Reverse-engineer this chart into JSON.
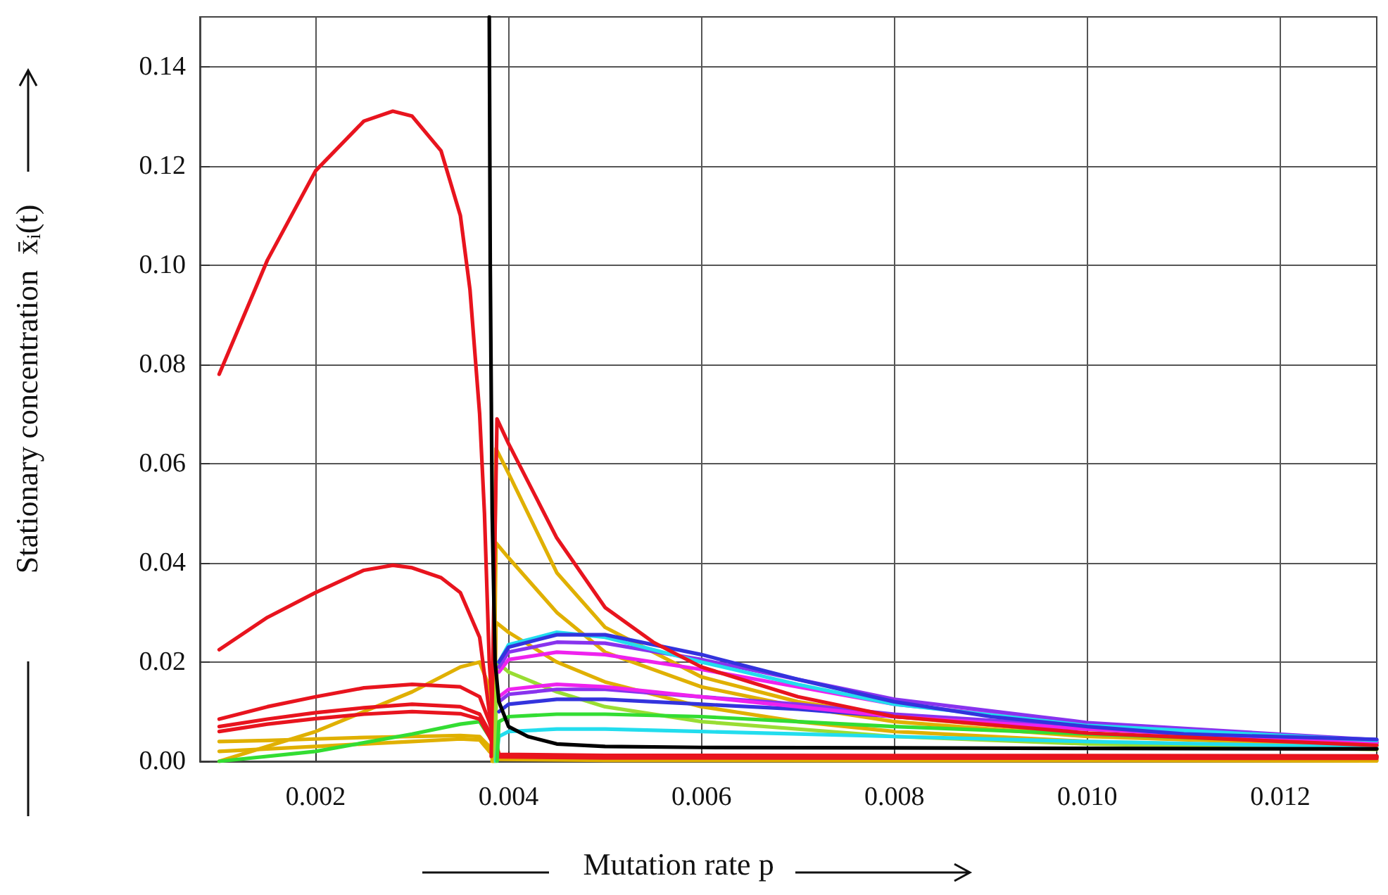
{
  "chart_data": {
    "type": "line",
    "xlabel": "Mutation rate p",
    "ylabel": "Stationary concentration  x̄$_{i}$(t)",
    "xlim": [
      0.0008,
      0.013
    ],
    "xticks": [
      0.002,
      0.004,
      0.006,
      0.008,
      {
        "value": 0.01,
        "label": "0.010"
      },
      0.012
    ],
    "ylim": [
      0,
      0.15
    ],
    "yticks": [
      {
        "value": 0,
        "label": "0.00"
      },
      {
        "value": 0.02,
        "label": "0.02"
      },
      {
        "value": 0.04,
        "label": "0.04"
      },
      {
        "value": 0.06,
        "label": "0.06"
      },
      {
        "value": 0.08,
        "label": "0.08"
      },
      {
        "value": 0.1,
        "label": "0.10"
      },
      {
        "value": 0.12,
        "label": "0.12"
      },
      {
        "value": 0.14,
        "label": "0.14"
      }
    ],
    "grid": true,
    "marker": "none",
    "line_style": "solid",
    "series": [
      {
        "color": "#e0b000",
        "x": [
          0.001,
          0.0015,
          0.002,
          0.0025,
          0.003,
          0.0035,
          0.0037,
          0.0038,
          0.0039,
          0.005,
          0.013
        ],
        "values": [
          0.004,
          0.0042,
          0.0045,
          0.0048,
          0.005,
          0.0052,
          0.005,
          0.003,
          0.0006,
          0.0004,
          0.0003
        ]
      },
      {
        "color": "#e0b000",
        "x": [
          0.001,
          0.0015,
          0.002,
          0.0025,
          0.003,
          0.0035,
          0.0037,
          0.0038,
          0.0039,
          0.005,
          0.013
        ],
        "values": [
          0.002,
          0.0025,
          0.003,
          0.0035,
          0.004,
          0.0045,
          0.0043,
          0.002,
          0.0004,
          0.0002,
          0.0001
        ]
      },
      {
        "color": "#e0b000",
        "x": [
          0.001,
          0.0015,
          0.002,
          0.0025,
          0.003,
          0.0035,
          0.0037,
          0.0038,
          0.0039
        ],
        "values": [
          0.0,
          0.003,
          0.006,
          0.01,
          0.014,
          0.019,
          0.02,
          0.015,
          0.001
        ]
      },
      {
        "color": "#33dd33",
        "x": [
          0.001,
          0.002,
          0.003,
          0.0035,
          0.0037,
          0.0038,
          0.0039
        ],
        "values": [
          0.0,
          0.002,
          0.0055,
          0.0075,
          0.008,
          0.005,
          0.0012
        ]
      },
      {
        "color": "#e8141e",
        "x": [
          0.001,
          0.0015,
          0.002,
          0.0025,
          0.003,
          0.0035,
          0.0037,
          0.0038,
          0.0039,
          0.005,
          0.013
        ],
        "values": [
          0.0085,
          0.011,
          0.013,
          0.0148,
          0.0155,
          0.015,
          0.013,
          0.008,
          0.0014,
          0.0012,
          0.0011
        ]
      },
      {
        "color": "#e8141e",
        "x": [
          0.001,
          0.0015,
          0.002,
          0.0025,
          0.003,
          0.0035,
          0.0037,
          0.0038,
          0.0039,
          0.005,
          0.013
        ],
        "values": [
          0.007,
          0.0085,
          0.0098,
          0.0108,
          0.0115,
          0.011,
          0.0095,
          0.006,
          0.0013,
          0.0011,
          0.001
        ]
      },
      {
        "color": "#e8141e",
        "x": [
          0.001,
          0.0015,
          0.002,
          0.0025,
          0.003,
          0.0035,
          0.0037,
          0.0038,
          0.0039,
          0.005,
          0.013
        ],
        "values": [
          0.006,
          0.0075,
          0.0086,
          0.0095,
          0.01,
          0.0096,
          0.0085,
          0.005,
          0.0012,
          0.001,
          0.0009
        ]
      },
      {
        "color": "#e8141e",
        "x": [
          0.001,
          0.0015,
          0.002,
          0.0025,
          0.0028,
          0.003,
          0.0033,
          0.0035,
          0.0037,
          0.0038,
          0.0039,
          0.005,
          0.013
        ],
        "values": [
          0.0225,
          0.029,
          0.034,
          0.0385,
          0.0395,
          0.039,
          0.037,
          0.034,
          0.025,
          0.01,
          0.0011,
          0.0009,
          0.0008
        ]
      },
      {
        "color": "#e8141e",
        "x": [
          0.001,
          0.0015,
          0.002,
          0.0025,
          0.0028,
          0.003,
          0.0033,
          0.0035,
          0.0036,
          0.0037,
          0.00375,
          0.0038,
          0.00385,
          0.0039,
          0.005,
          0.013
        ],
        "values": [
          0.078,
          0.101,
          0.119,
          0.129,
          0.131,
          0.13,
          0.123,
          0.11,
          0.095,
          0.07,
          0.05,
          0.02,
          0.005,
          0.0009,
          0.0007,
          0.0006
        ]
      },
      {
        "color": "#e0b000",
        "x": [
          0.00385,
          0.00387,
          0.004,
          0.0045,
          0.005,
          0.006,
          0.007,
          0.008,
          0.01,
          0.013
        ],
        "values": [
          0.0,
          0.028,
          0.026,
          0.02,
          0.016,
          0.011,
          0.008,
          0.006,
          0.004,
          0.0026
        ]
      },
      {
        "color": "#e0b000",
        "x": [
          0.00384,
          0.00387,
          0.004,
          0.0045,
          0.005,
          0.006,
          0.007,
          0.008,
          0.01,
          0.013
        ],
        "values": [
          0.0,
          0.044,
          0.041,
          0.03,
          0.022,
          0.015,
          0.011,
          0.008,
          0.005,
          0.0031
        ]
      },
      {
        "color": "#e0b000",
        "x": [
          0.00383,
          0.00387,
          0.004,
          0.0045,
          0.005,
          0.006,
          0.007,
          0.008,
          0.01,
          0.013
        ],
        "values": [
          0.0,
          0.063,
          0.058,
          0.038,
          0.027,
          0.017,
          0.012,
          0.009,
          0.0055,
          0.0033
        ]
      },
      {
        "color": "#99dd33",
        "x": [
          0.00386,
          0.00388,
          0.004,
          0.0045,
          0.005,
          0.006,
          0.008,
          0.01,
          0.013
        ],
        "values": [
          0.0,
          0.02,
          0.018,
          0.014,
          0.011,
          0.008,
          0.005,
          0.0035,
          0.0024
        ]
      },
      {
        "color": "#22ddee",
        "x": [
          0.00387,
          0.0039,
          0.004,
          0.0045,
          0.005,
          0.006,
          0.007,
          0.008,
          0.01,
          0.013
        ],
        "values": [
          0.0,
          0.005,
          0.006,
          0.0065,
          0.0065,
          0.006,
          0.0055,
          0.005,
          0.004,
          0.0028
        ]
      },
      {
        "color": "#33dd33",
        "x": [
          0.00388,
          0.0039,
          0.004,
          0.0045,
          0.005,
          0.006,
          0.007,
          0.008,
          0.01,
          0.013
        ],
        "values": [
          0.0,
          0.008,
          0.009,
          0.0095,
          0.0095,
          0.009,
          0.008,
          0.007,
          0.0055,
          0.0035
        ]
      },
      {
        "color": "#3333dd",
        "x": [
          0.0039,
          0.004,
          0.0045,
          0.005,
          0.006,
          0.007,
          0.008,
          0.01,
          0.013
        ],
        "values": [
          0.01,
          0.0115,
          0.0125,
          0.0125,
          0.0115,
          0.0105,
          0.009,
          0.0065,
          0.0037
        ]
      },
      {
        "color": "#8833ee",
        "x": [
          0.0039,
          0.004,
          0.0045,
          0.005,
          0.006,
          0.007,
          0.008,
          0.01,
          0.013
        ],
        "values": [
          0.012,
          0.0135,
          0.0145,
          0.0145,
          0.013,
          0.0115,
          0.0095,
          0.007,
          0.0039
        ]
      },
      {
        "color": "#ee22ee",
        "x": [
          0.0039,
          0.004,
          0.0045,
          0.005,
          0.006,
          0.007,
          0.008,
          0.01,
          0.013
        ],
        "values": [
          0.013,
          0.0145,
          0.0155,
          0.015,
          0.013,
          0.011,
          0.009,
          0.0065,
          0.0038
        ]
      },
      {
        "color": "#ee22ee",
        "x": [
          0.0039,
          0.004,
          0.0045,
          0.005,
          0.006,
          0.007,
          0.008,
          0.01,
          0.013
        ],
        "values": [
          0.018,
          0.0205,
          0.022,
          0.0215,
          0.0185,
          0.015,
          0.0115,
          0.0075,
          0.0041
        ]
      },
      {
        "color": "#8833ee",
        "x": [
          0.0039,
          0.004,
          0.0045,
          0.005,
          0.006,
          0.007,
          0.008,
          0.01,
          0.013
        ],
        "values": [
          0.019,
          0.022,
          0.024,
          0.0238,
          0.0205,
          0.0165,
          0.0125,
          0.0078,
          0.0043
        ]
      },
      {
        "color": "#22ddee",
        "x": [
          0.0039,
          0.004,
          0.0045,
          0.005,
          0.006,
          0.007,
          0.008,
          0.01,
          0.013
        ],
        "values": [
          0.02,
          0.0235,
          0.026,
          0.025,
          0.02,
          0.0155,
          0.0115,
          0.0072,
          0.0042
        ]
      },
      {
        "color": "#3333dd",
        "x": [
          0.0039,
          0.004,
          0.0045,
          0.005,
          0.006,
          0.007,
          0.008,
          0.009,
          0.01,
          0.011,
          0.013
        ],
        "values": [
          0.02,
          0.023,
          0.0255,
          0.0255,
          0.0215,
          0.0165,
          0.012,
          0.009,
          0.007,
          0.0055,
          0.0044
        ]
      },
      {
        "color": "#e8141e",
        "x": [
          0.00382,
          0.00388,
          0.004,
          0.0045,
          0.005,
          0.0055,
          0.006,
          0.007,
          0.008,
          0.01,
          0.013
        ],
        "values": [
          0.001,
          0.069,
          0.064,
          0.045,
          0.031,
          0.024,
          0.019,
          0.013,
          0.009,
          0.0057,
          0.0032
        ]
      },
      {
        "color": "#000000",
        "x": [
          0.0038,
          0.00381,
          0.00383,
          0.00386,
          0.0039,
          0.004,
          0.0042,
          0.0045,
          0.005,
          0.006,
          0.008,
          0.01,
          0.013
        ],
        "values": [
          0.15,
          0.1,
          0.05,
          0.02,
          0.012,
          0.007,
          0.005,
          0.0035,
          0.003,
          0.0028,
          0.0027,
          0.0026,
          0.0025
        ]
      }
    ]
  }
}
